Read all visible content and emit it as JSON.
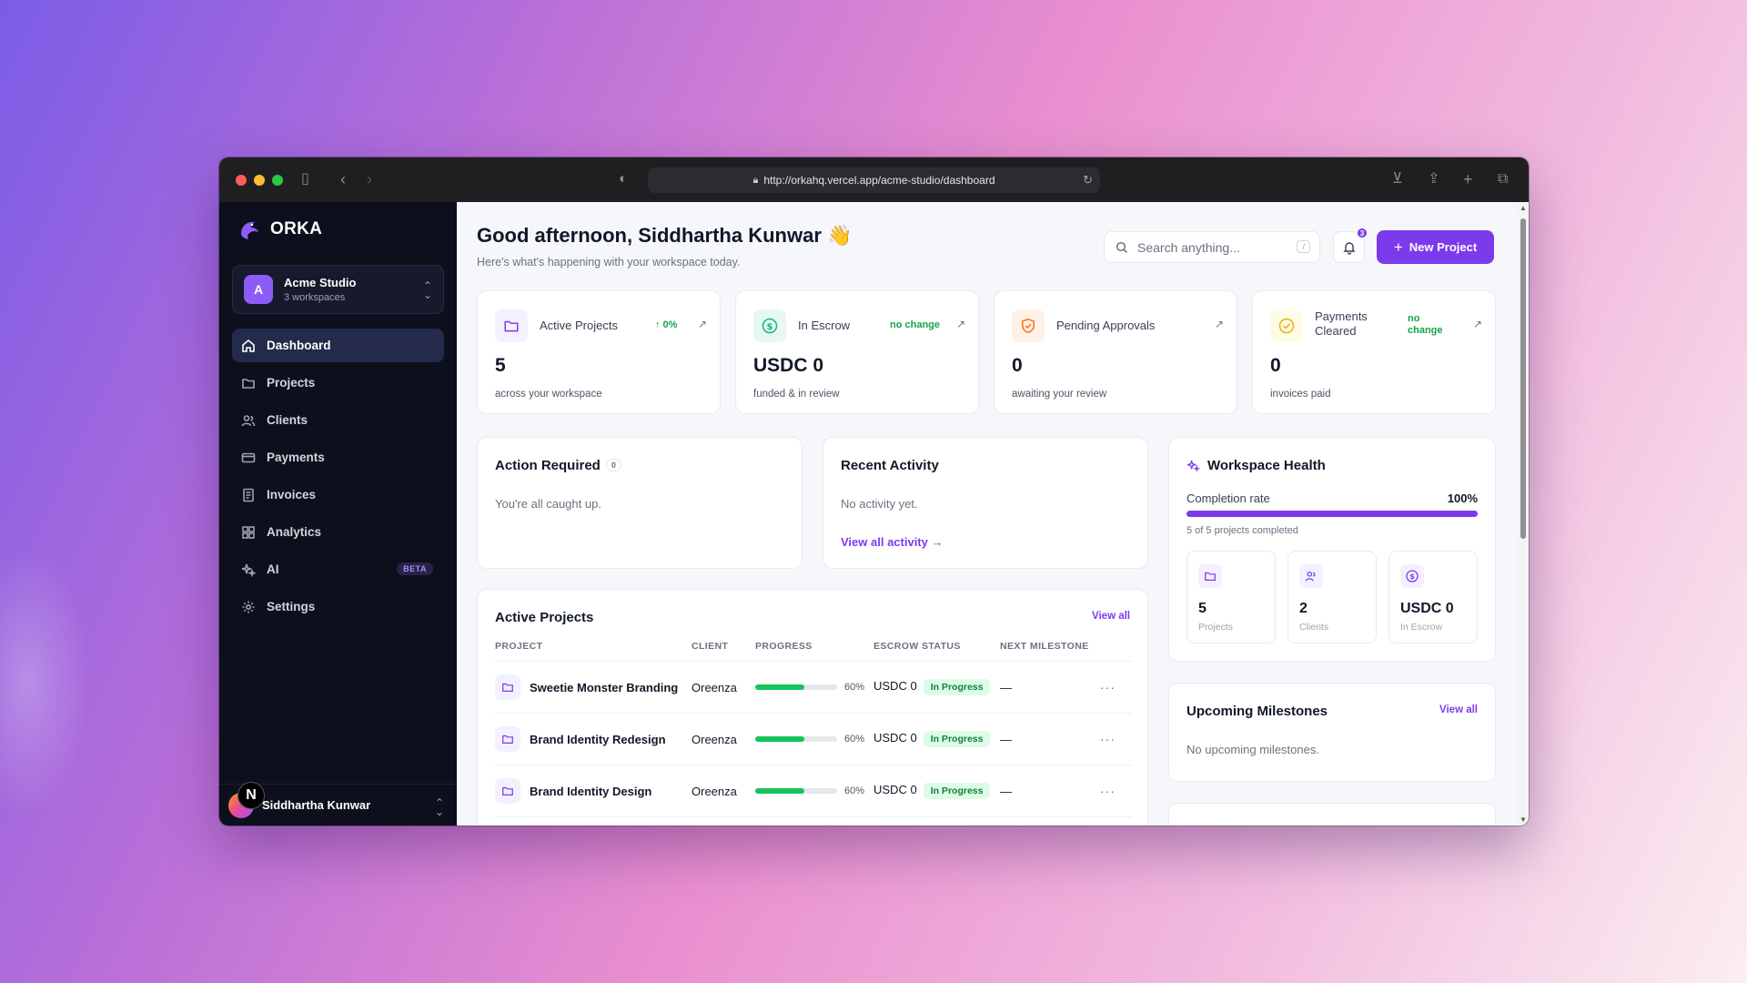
{
  "browser": {
    "url": "http://orkahq.vercel.app/acme-studio/dashboard"
  },
  "brand": {
    "name": "ORKA"
  },
  "workspace": {
    "initial": "A",
    "name": "Acme Studio",
    "sub": "3 workspaces"
  },
  "sidebar": {
    "items": [
      {
        "label": "Dashboard",
        "icon": "home-icon"
      },
      {
        "label": "Projects",
        "icon": "folder-icon"
      },
      {
        "label": "Clients",
        "icon": "users-icon"
      },
      {
        "label": "Payments",
        "icon": "credit-card-icon"
      },
      {
        "label": "Invoices",
        "icon": "invoice-icon"
      },
      {
        "label": "Analytics",
        "icon": "grid-icon"
      },
      {
        "label": "AI",
        "icon": "sparkles-icon",
        "badge": "BETA"
      },
      {
        "label": "Settings",
        "icon": "gear-icon"
      }
    ]
  },
  "user": {
    "badge": "N",
    "name": "Siddhartha Kunwar"
  },
  "header": {
    "greeting": "Good afternoon, Siddhartha Kunwar 👋",
    "subtitle": "Here's what's happening with your workspace today.",
    "search_placeholder": "Search anything...",
    "search_shortcut": "/",
    "notifications_count": "3",
    "new_project_label": "New Project"
  },
  "stats": [
    {
      "label": "Active Projects",
      "change": "↑ 0%",
      "value": "5",
      "desc": "across your workspace",
      "icon": "folder-icon",
      "accent": "#7c3aed"
    },
    {
      "label": "In Escrow",
      "change": "no change",
      "value": "USDC 0",
      "desc": "funded & in review",
      "icon": "dollar-circle-icon",
      "accent": "#10b981"
    },
    {
      "label": "Pending Approvals",
      "change": "",
      "value": "0",
      "desc": "awaiting your review",
      "icon": "shield-check-icon",
      "accent": "#f97316"
    },
    {
      "label": "Payments Cleared",
      "change": "no change",
      "value": "0",
      "desc": "invoices paid",
      "icon": "check-circle-icon",
      "accent": "#eab308"
    }
  ],
  "action_required": {
    "title": "Action Required",
    "count": "0",
    "empty": "You're all caught up."
  },
  "recent_activity": {
    "title": "Recent Activity",
    "empty": "No activity yet.",
    "link": "View all activity →"
  },
  "health": {
    "title": "Workspace Health",
    "completion_label": "Completion rate",
    "completion_value": "100%",
    "completion_fraction": 1.0,
    "sub": "5 of 5 projects completed",
    "tiles": [
      {
        "value": "5",
        "label": "Projects",
        "icon": "folder-icon"
      },
      {
        "value": "2",
        "label": "Clients",
        "icon": "users-icon"
      },
      {
        "value": "USDC 0",
        "label": "In Escrow",
        "icon": "dollar-circle-icon"
      }
    ]
  },
  "active_projects": {
    "title": "Active Projects",
    "view_all": "View all",
    "columns": [
      "PROJECT",
      "CLIENT",
      "PROGRESS",
      "ESCROW STATUS",
      "NEXT MILESTONE"
    ],
    "rows": [
      {
        "name": "Sweetie Monster Branding",
        "client": "Oreenza",
        "progress": 60,
        "progress_label": "60%",
        "escrow": "USDC 0",
        "status": "In Progress",
        "milestone": "—"
      },
      {
        "name": "Brand Identity Redesign",
        "client": "Oreenza",
        "progress": 60,
        "progress_label": "60%",
        "escrow": "USDC 0",
        "status": "In Progress",
        "milestone": "—"
      },
      {
        "name": "Brand Identity Design",
        "client": "Oreenza",
        "progress": 60,
        "progress_label": "60%",
        "escrow": "USDC 0",
        "status": "In Progress",
        "milestone": "—"
      }
    ]
  },
  "upcoming": {
    "title": "Upcoming Milestones",
    "view_all": "View all",
    "empty": "No upcoming milestones."
  }
}
